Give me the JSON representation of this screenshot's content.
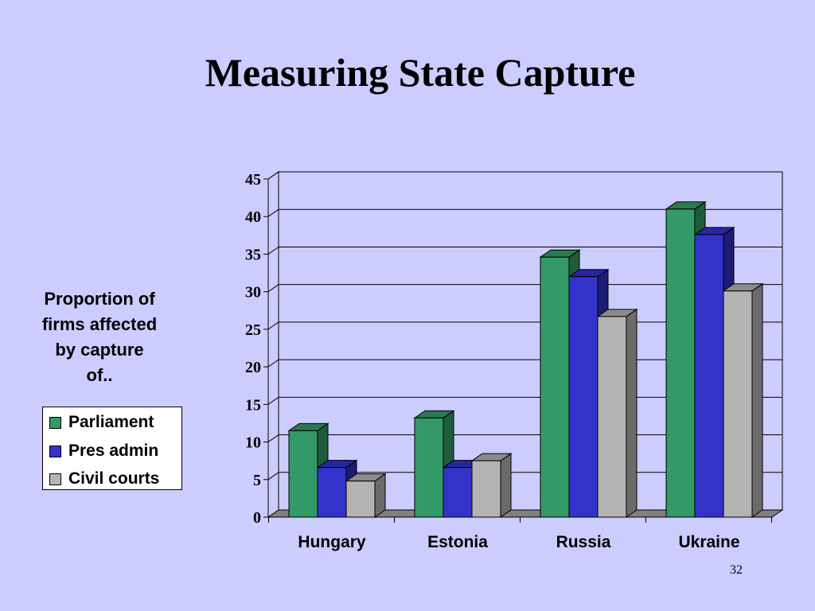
{
  "slide": {
    "title": "Measuring State Capture",
    "side_label": [
      "Proportion of",
      "firms affected",
      "by capture",
      "of.."
    ],
    "page_number": "32"
  },
  "chart_data": {
    "type": "bar",
    "style": "3d-clustered",
    "title": "",
    "xlabel": "",
    "ylabel": "Proportion of firms affected by capture of..",
    "categories": [
      "Hungary",
      "Estonia",
      "Russia",
      "Ukraine"
    ],
    "series": [
      {
        "name": "Parliament",
        "values": [
          11.5,
          13.2,
          34.6,
          41.0
        ],
        "color": "#339966",
        "top": "#2a7a50",
        "side": "#1f5c3c"
      },
      {
        "name": "Pres admin",
        "values": [
          6.6,
          6.6,
          32.0,
          37.6
        ],
        "color": "#3333cc",
        "top": "#2626a0",
        "side": "#1c1c77"
      },
      {
        "name": "Civil courts",
        "values": [
          4.8,
          7.5,
          26.7,
          30.1
        ],
        "color": "#b3b3b3",
        "top": "#8c8c8c",
        "side": "#6b6b6b"
      }
    ],
    "yticks": [
      0,
      5,
      10,
      15,
      20,
      25,
      30,
      35,
      40,
      45
    ],
    "ylim": [
      0,
      45
    ],
    "grid": true,
    "legend": "left"
  }
}
